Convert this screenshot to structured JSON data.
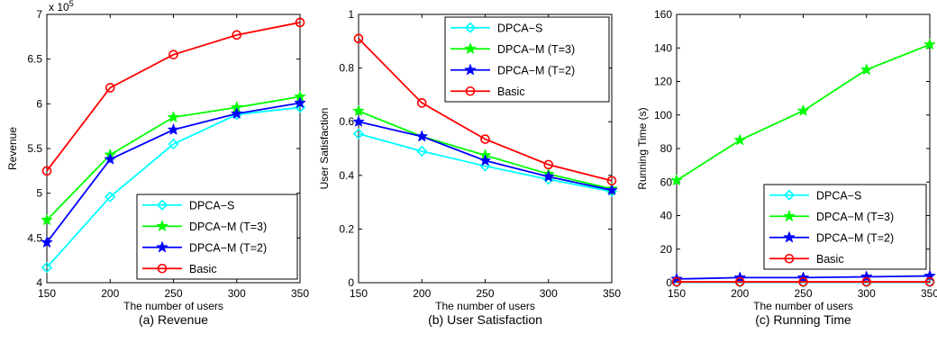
{
  "figure": {
    "background": "#ffffff"
  },
  "chart_data": [
    {
      "type": "line",
      "caption": "(a) Revenue",
      "xlabel": "The number of users",
      "ylabel": "Revenue",
      "y_exponent_label": "x 10",
      "y_exponent_power": "5",
      "x": [
        150,
        200,
        250,
        300,
        350
      ],
      "xlim": [
        150,
        350
      ],
      "ylim": [
        4,
        7
      ],
      "xticks": [
        "150",
        "200",
        "250",
        "300",
        "350"
      ],
      "yticks": [
        "4",
        "4.5",
        "5",
        "5.5",
        "6",
        "6.5",
        "7"
      ],
      "ytick_values": [
        4,
        4.5,
        5,
        5.5,
        6,
        6.5,
        7
      ],
      "legend_position": "bottom-right",
      "series": [
        {
          "name": "DPCA−S",
          "color": "#00ffff",
          "marker": "diamond",
          "values": [
            4.17,
            4.96,
            5.55,
            5.88,
            5.96
          ]
        },
        {
          "name": "DPCA−M (T=3)",
          "color": "#00ff00",
          "marker": "star",
          "values": [
            4.7,
            5.43,
            5.85,
            5.96,
            6.08
          ]
        },
        {
          "name": "DPCA−M (T=2)",
          "color": "#0000ff",
          "marker": "star",
          "values": [
            4.45,
            5.38,
            5.71,
            5.89,
            6.01
          ]
        },
        {
          "name": "Basic",
          "color": "#ff0000",
          "marker": "circle",
          "values": [
            5.25,
            6.18,
            6.55,
            6.77,
            6.91
          ]
        }
      ]
    },
    {
      "type": "line",
      "caption": "(b) User Satisfaction",
      "xlabel": "The number of users",
      "ylabel": "User Satisfaction",
      "x": [
        150,
        200,
        250,
        300,
        350
      ],
      "xlim": [
        150,
        350
      ],
      "ylim": [
        0,
        1
      ],
      "xticks": [
        "150",
        "200",
        "250",
        "300",
        "350"
      ],
      "yticks": [
        "0",
        "0.2",
        "0.4",
        "0.6",
        "0.8",
        "1"
      ],
      "ytick_values": [
        0,
        0.2,
        0.4,
        0.6,
        0.8,
        1
      ],
      "legend_position": "top-right",
      "series": [
        {
          "name": "DPCA−S",
          "color": "#00ffff",
          "marker": "diamond",
          "values": [
            0.555,
            0.49,
            0.435,
            0.385,
            0.34
          ]
        },
        {
          "name": "DPCA−M (T=3)",
          "color": "#00ff00",
          "marker": "star",
          "values": [
            0.64,
            0.545,
            0.475,
            0.405,
            0.35
          ]
        },
        {
          "name": "DPCA−M (T=2)",
          "color": "#0000ff",
          "marker": "star",
          "values": [
            0.6,
            0.545,
            0.455,
            0.395,
            0.345
          ]
        },
        {
          "name": "Basic",
          "color": "#ff0000",
          "marker": "circle",
          "values": [
            0.91,
            0.67,
            0.535,
            0.44,
            0.38
          ]
        }
      ]
    },
    {
      "type": "line",
      "caption": "(c) Running Time",
      "xlabel": "The number of users",
      "ylabel": "Running Time (s)",
      "x": [
        150,
        200,
        250,
        300,
        350
      ],
      "xlim": [
        150,
        350
      ],
      "ylim": [
        0,
        160
      ],
      "xticks": [
        "150",
        "200",
        "250",
        "300",
        "350"
      ],
      "yticks": [
        "0",
        "20",
        "40",
        "60",
        "80",
        "100",
        "120",
        "140",
        "160"
      ],
      "ytick_values": [
        0,
        20,
        40,
        60,
        80,
        100,
        120,
        140,
        160
      ],
      "legend_position": "bottom-right",
      "series": [
        {
          "name": "DPCA−S",
          "color": "#00ffff",
          "marker": "diamond",
          "values": [
            0.3,
            0.3,
            0.3,
            0.3,
            0.3
          ]
        },
        {
          "name": "DPCA−M (T=3)",
          "color": "#00ff00",
          "marker": "star",
          "values": [
            61,
            85,
            102.5,
            127,
            142
          ]
        },
        {
          "name": "DPCA−M (T=2)",
          "color": "#0000ff",
          "marker": "star",
          "values": [
            2.2,
            3.0,
            3.0,
            3.5,
            4.0
          ]
        },
        {
          "name": "Basic",
          "color": "#ff0000",
          "marker": "circle",
          "values": [
            0.5,
            0.5,
            0.5,
            0.5,
            0.5
          ]
        }
      ]
    }
  ]
}
